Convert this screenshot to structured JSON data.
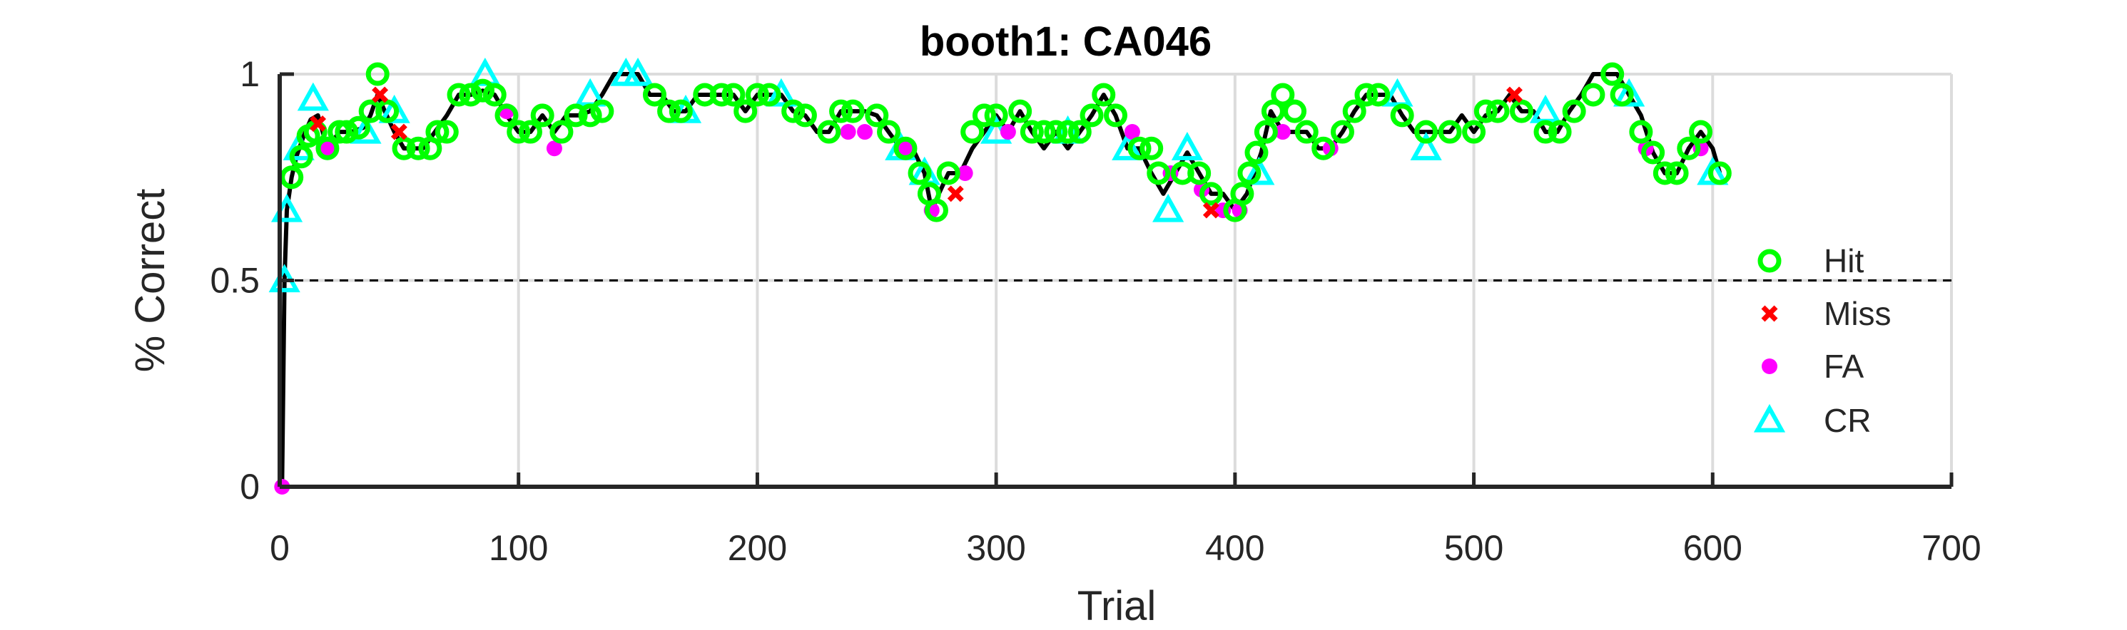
{
  "chart_data": {
    "type": "scatter",
    "title": "booth1: CA046",
    "xlabel": "Trial",
    "ylabel": "% Correct",
    "xlim": [
      0,
      700
    ],
    "ylim": [
      0,
      1
    ],
    "xticks": [
      0,
      100,
      200,
      300,
      400,
      500,
      600,
      700
    ],
    "yticks": [
      0,
      0.5,
      1
    ],
    "ytick_labels": [
      "0",
      "0.5",
      "1"
    ],
    "grid": true,
    "reference_line": {
      "y": 0.5,
      "style": "dashed",
      "color": "#000000"
    },
    "legend_position": "right",
    "curve": {
      "x": [
        1,
        2,
        3,
        5,
        7,
        10,
        13,
        16,
        20,
        25,
        30,
        35,
        38,
        41,
        44,
        48,
        52,
        56,
        60,
        65,
        70,
        75,
        80,
        85,
        90,
        95,
        100,
        105,
        110,
        115,
        120,
        125,
        130,
        135,
        140,
        145,
        150,
        155,
        160,
        165,
        170,
        175,
        180,
        185,
        190,
        195,
        200,
        205,
        210,
        215,
        220,
        225,
        230,
        235,
        240,
        245,
        250,
        255,
        260,
        265,
        270,
        273,
        276,
        280,
        285,
        290,
        295,
        300,
        305,
        310,
        315,
        320,
        325,
        330,
        335,
        340,
        345,
        350,
        355,
        360,
        365,
        370,
        375,
        380,
        385,
        390,
        395,
        400,
        405,
        408,
        411,
        415,
        420,
        425,
        430,
        435,
        440,
        445,
        450,
        455,
        460,
        465,
        470,
        475,
        480,
        485,
        490,
        495,
        500,
        505,
        510,
        515,
        520,
        525,
        530,
        535,
        540,
        545,
        550,
        555,
        560,
        565,
        570,
        575,
        580,
        585,
        590,
        595,
        600,
        603
      ],
      "y": [
        0,
        0.5,
        0.67,
        0.75,
        0.8,
        0.85,
        0.89,
        0.9,
        0.82,
        0.86,
        0.86,
        0.87,
        0.9,
        0.95,
        0.91,
        0.86,
        0.82,
        0.82,
        0.82,
        0.86,
        0.9,
        0.95,
        0.95,
        0.96,
        0.95,
        0.9,
        0.86,
        0.86,
        0.9,
        0.86,
        0.9,
        0.9,
        0.91,
        0.95,
        1,
        1,
        1,
        0.95,
        0.95,
        0.91,
        0.91,
        0.95,
        0.95,
        0.95,
        0.95,
        0.91,
        0.95,
        0.95,
        0.95,
        0.91,
        0.9,
        0.86,
        0.86,
        0.91,
        0.91,
        0.91,
        0.9,
        0.86,
        0.82,
        0.82,
        0.76,
        0.67,
        0.71,
        0.76,
        0.76,
        0.82,
        0.86,
        0.9,
        0.86,
        0.91,
        0.86,
        0.82,
        0.86,
        0.82,
        0.86,
        0.9,
        0.95,
        0.9,
        0.82,
        0.82,
        0.76,
        0.71,
        0.76,
        0.81,
        0.76,
        0.71,
        0.71,
        0.67,
        0.71,
        0.76,
        0.81,
        0.91,
        0.86,
        0.86,
        0.86,
        0.82,
        0.82,
        0.86,
        0.91,
        0.95,
        0.95,
        0.95,
        0.9,
        0.86,
        0.86,
        0.86,
        0.86,
        0.9,
        0.86,
        0.9,
        0.91,
        0.95,
        0.91,
        0.91,
        0.86,
        0.86,
        0.91,
        0.95,
        1,
        1,
        1,
        0.95,
        0.9,
        0.81,
        0.76,
        0.76,
        0.82,
        0.86,
        0.82,
        0.76
      ]
    },
    "series": [
      {
        "name": "Hit",
        "marker": "circle-open",
        "color": "#00ff00",
        "x": [
          5,
          9,
          12,
          15,
          20,
          25,
          28,
          33,
          38,
          41,
          45,
          52,
          58,
          63,
          66,
          70,
          75,
          80,
          85,
          90,
          95,
          100,
          105,
          110,
          118,
          124,
          130,
          135,
          157,
          163,
          168,
          178,
          185,
          190,
          195,
          200,
          205,
          215,
          220,
          230,
          235,
          240,
          250,
          255,
          262,
          268,
          272,
          275,
          280,
          290,
          295,
          300,
          310,
          315,
          320,
          325,
          330,
          335,
          340,
          345,
          350,
          360,
          365,
          368,
          378,
          385,
          390,
          400,
          403,
          406,
          409,
          413,
          416,
          420,
          425,
          430,
          437,
          445,
          450,
          455,
          460,
          470,
          480,
          490,
          500,
          505,
          510,
          520,
          530,
          536,
          542,
          550,
          558,
          562,
          570,
          575,
          580,
          585,
          590,
          595,
          603
        ],
        "y": [
          0.75,
          0.8,
          0.85,
          0.86,
          0.82,
          0.86,
          0.86,
          0.87,
          0.91,
          1,
          0.91,
          0.82,
          0.82,
          0.82,
          0.86,
          0.86,
          0.95,
          0.95,
          0.96,
          0.95,
          0.9,
          0.86,
          0.86,
          0.9,
          0.86,
          0.9,
          0.9,
          0.91,
          0.95,
          0.91,
          0.91,
          0.95,
          0.95,
          0.95,
          0.91,
          0.95,
          0.95,
          0.91,
          0.9,
          0.86,
          0.91,
          0.91,
          0.9,
          0.86,
          0.82,
          0.76,
          0.71,
          0.67,
          0.76,
          0.86,
          0.9,
          0.9,
          0.91,
          0.86,
          0.86,
          0.86,
          0.86,
          0.86,
          0.9,
          0.95,
          0.9,
          0.82,
          0.82,
          0.76,
          0.76,
          0.76,
          0.71,
          0.67,
          0.71,
          0.76,
          0.81,
          0.86,
          0.91,
          0.95,
          0.91,
          0.86,
          0.82,
          0.86,
          0.91,
          0.95,
          0.95,
          0.9,
          0.86,
          0.86,
          0.86,
          0.91,
          0.91,
          0.91,
          0.86,
          0.86,
          0.91,
          0.95,
          1,
          0.95,
          0.86,
          0.81,
          0.76,
          0.76,
          0.82,
          0.86,
          0.76
        ]
      },
      {
        "name": "Miss",
        "marker": "x",
        "color": "#ff0000",
        "x": [
          16,
          42,
          50,
          283,
          390,
          517
        ],
        "y": [
          0.88,
          0.95,
          0.86,
          0.71,
          0.67,
          0.95
        ]
      },
      {
        "name": "FA",
        "marker": "dot",
        "color": "#ff00ff",
        "x": [
          1,
          20,
          95,
          115,
          238,
          245,
          262,
          273,
          287,
          305,
          357,
          373,
          386,
          395,
          402,
          420,
          440,
          572,
          595
        ],
        "y": [
          0,
          0.82,
          0.91,
          0.82,
          0.86,
          0.86,
          0.82,
          0.67,
          0.76,
          0.86,
          0.86,
          0.76,
          0.72,
          0.67,
          0.67,
          0.86,
          0.82,
          0.82,
          0.82
        ]
      },
      {
        "name": "CR",
        "marker": "triangle-open",
        "color": "#00ffff",
        "x": [
          2,
          3,
          8,
          14,
          36,
          48,
          86,
          130,
          145,
          150,
          170,
          210,
          260,
          270,
          300,
          330,
          355,
          372,
          380,
          410,
          468,
          480,
          530,
          565,
          600
        ],
        "y": [
          0.5,
          0.67,
          0.82,
          0.94,
          0.86,
          0.91,
          1,
          0.95,
          1,
          1,
          0.91,
          0.95,
          0.82,
          0.76,
          0.86,
          0.86,
          0.82,
          0.67,
          0.82,
          0.76,
          0.95,
          0.82,
          0.91,
          0.95,
          0.76
        ]
      }
    ]
  }
}
